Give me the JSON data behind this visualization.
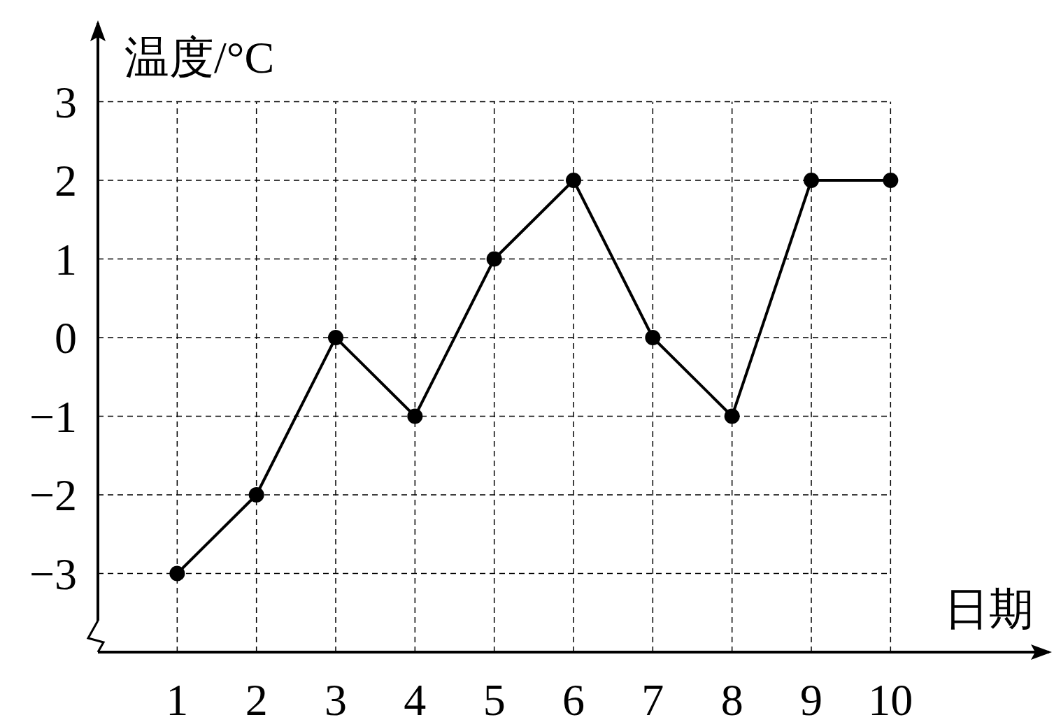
{
  "chart_data": {
    "type": "line",
    "xlabel": "日期",
    "ylabel": "温度/°C",
    "x": [
      1,
      2,
      3,
      4,
      5,
      6,
      7,
      8,
      9,
      10
    ],
    "values": [
      -3,
      -2,
      0,
      -1,
      1,
      2,
      0,
      -1,
      2,
      2
    ],
    "color": "#000000",
    "xlim": [
      0,
      12
    ],
    "ylim": [
      -4,
      4
    ],
    "xticks": [
      1,
      2,
      3,
      4,
      5,
      6,
      7,
      8,
      9,
      10
    ],
    "yticks": [
      -3,
      -2,
      -1,
      0,
      1,
      2,
      3
    ],
    "grid": true,
    "marker": "circle",
    "line_style": "solid"
  }
}
